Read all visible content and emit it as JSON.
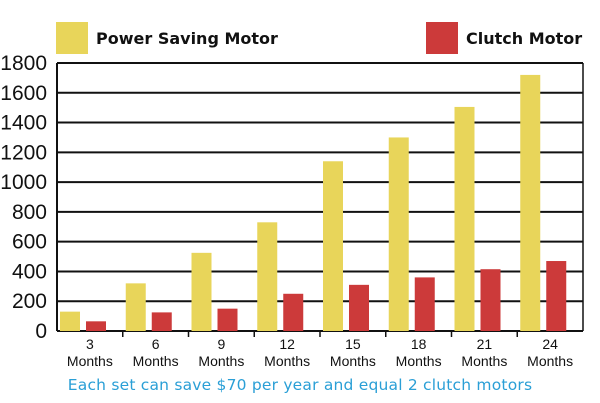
{
  "chart_data": {
    "type": "bar",
    "categories": [
      "3 Months",
      "6 Months",
      "9 Months",
      "12 Months",
      "15 Months",
      "18 Months",
      "21 Months",
      "24 Months"
    ],
    "category_lines": [
      [
        "3",
        "Months"
      ],
      [
        "6",
        "Months"
      ],
      [
        "9",
        "Months"
      ],
      [
        "12",
        "Months"
      ],
      [
        "15",
        "Months"
      ],
      [
        "18",
        "Months"
      ],
      [
        "21",
        "Months"
      ],
      [
        "24",
        "Months"
      ]
    ],
    "series": [
      {
        "name": "Power Saving Motor",
        "color": "#e8d55a",
        "values": [
          130,
          320,
          525,
          730,
          1140,
          1300,
          1505,
          1720
        ]
      },
      {
        "name": "Clutch Motor",
        "color": "#cc3a3a",
        "values": [
          65,
          125,
          150,
          250,
          310,
          360,
          415,
          470
        ]
      }
    ],
    "ylim": [
      0,
      1800
    ],
    "yticks": [
      "0",
      "200",
      "400",
      "600",
      "800",
      "1000",
      "1200",
      "1400",
      "1600",
      "1800"
    ],
    "grid": true,
    "legend_position": "top",
    "caption": "Each set can save $70 per year and equal 2 clutch motors"
  }
}
